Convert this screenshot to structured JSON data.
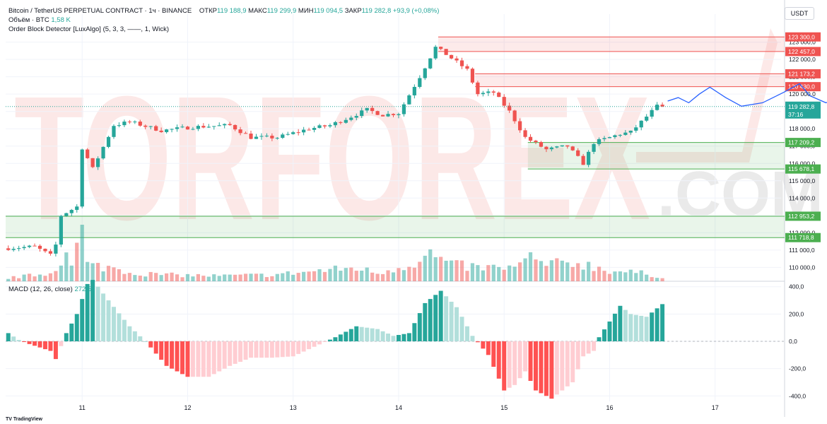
{
  "header": {
    "symbol_title": "Bitcoin / TetherUS PERPETUAL CONTRACT · 1ч · BINANCE",
    "ohlc": [
      {
        "label": "ОТКР",
        "value": "119 188,9"
      },
      {
        "label": "МАКС",
        "value": "119 299,9"
      },
      {
        "label": "МИН",
        "value": "119 094,5"
      },
      {
        "label": "ЗАКР",
        "value": "119 282,8"
      }
    ],
    "change": "+93,9 (+0,08%)",
    "volume_label": "Объём · BTC",
    "volume_value": "1,58 K",
    "indicator_label": "Order Block Detector [LuxAlgo] (5, 3, 3, ——, 1, Wick)",
    "currency": "USDT"
  },
  "macd_legend": {
    "label": "MACD (12, 26, close)",
    "value": "272,5"
  },
  "watermark": {
    "text": "TORFOREX",
    "suffix": ".COM"
  },
  "footer": {
    "brand": "TV TradingView"
  },
  "colors": {
    "up": "#26a69a",
    "down": "#ef5350",
    "hist_up_strong": "#26a69a",
    "hist_up_weak": "#b2dfdb",
    "hist_down_strong": "#ff5252",
    "hist_down_weak": "#ffcdd2",
    "bear_ob": "#ef5350",
    "bull_ob": "#4caf50",
    "forecast": "#2962ff",
    "watermark": "#ef5350"
  },
  "chart_data": [
    {
      "type": "candlestick",
      "title": "Bitcoin / TetherUS PERPETUAL CONTRACT",
      "price_axis": {
        "ylim": [
          109200,
          123800
        ],
        "ticks": [
          {
            "value": 110000,
            "label": "110 000,0"
          },
          {
            "value": 111000,
            "label": "111 000,0"
          },
          {
            "value": 112000,
            "label": "112 000,0"
          },
          {
            "value": 113000,
            "label": "113 000,0"
          },
          {
            "value": 114000,
            "label": "114 000,0"
          },
          {
            "value": 115000,
            "label": "115 000,0"
          },
          {
            "value": 116000,
            "label": "116 000,0"
          },
          {
            "value": 117000,
            "label": "117 000,0"
          },
          {
            "value": 118000,
            "label": "118 000,0"
          },
          {
            "value": 119000,
            "label": "119 000,0"
          },
          {
            "value": 120000,
            "label": "120 000,0"
          },
          {
            "value": 121000,
            "label": "121 000,0"
          },
          {
            "value": 122000,
            "label": "122 000,0"
          },
          {
            "value": 123000,
            "label": "123 000,0"
          }
        ]
      },
      "time_axis": {
        "ticks": [
          {
            "bar": 14,
            "label": "11"
          },
          {
            "bar": 34,
            "label": "12"
          },
          {
            "bar": 54,
            "label": "13"
          },
          {
            "bar": 74,
            "label": "14"
          },
          {
            "bar": 94,
            "label": "15"
          },
          {
            "bar": 114,
            "label": "16"
          },
          {
            "bar": 134,
            "label": "17"
          }
        ],
        "total_bars": 140
      },
      "key_points": [
        [
          0,
          111100
        ],
        [
          6,
          111200
        ],
        [
          9,
          110700
        ],
        [
          10,
          111300
        ],
        [
          11,
          113000
        ],
        [
          14,
          113500
        ],
        [
          15,
          116900
        ],
        [
          17,
          115700
        ],
        [
          21,
          118200
        ],
        [
          24,
          118400
        ],
        [
          30,
          117900
        ],
        [
          36,
          118100
        ],
        [
          43,
          118200
        ],
        [
          47,
          117500
        ],
        [
          52,
          117500
        ],
        [
          58,
          118000
        ],
        [
          62,
          118200
        ],
        [
          66,
          118700
        ],
        [
          69,
          119100
        ],
        [
          72,
          118800
        ],
        [
          75,
          118900
        ],
        [
          79,
          121000
        ],
        [
          82,
          122700
        ],
        [
          84,
          122300
        ],
        [
          88,
          121400
        ],
        [
          90,
          120000
        ],
        [
          93,
          120100
        ],
        [
          96,
          119000
        ],
        [
          99,
          117500
        ],
        [
          103,
          116800
        ],
        [
          107,
          117000
        ],
        [
          110,
          116000
        ],
        [
          112,
          117200
        ],
        [
          114,
          117400
        ],
        [
          117,
          117700
        ],
        [
          119,
          117800
        ],
        [
          121,
          118400
        ],
        [
          123,
          119000
        ],
        [
          124,
          119300
        ]
      ],
      "last_price": {
        "value": 119282.8,
        "label": "119 282,8",
        "countdown": "37:16"
      },
      "order_blocks": [
        {
          "kind": "bearish",
          "top": 123300,
          "bottom": 122457,
          "start_bar": 82,
          "top_label": "123 300,0",
          "bottom_label": "122 457,0"
        },
        {
          "kind": "bearish",
          "top": 121173.2,
          "bottom": 120430,
          "start_bar": 89,
          "top_label": "121 173,2",
          "bottom_label": "120 430,0"
        },
        {
          "kind": "bullish",
          "top": 117209.2,
          "bottom": 115678.1,
          "start_bar": 99,
          "top_label": "117 209,2",
          "bottom_label": "115 678,1"
        },
        {
          "kind": "bullish",
          "top": 112953.2,
          "bottom": 111718.8,
          "start_bar": 0,
          "top_label": "112 953,2",
          "bottom_label": "111 718,8"
        }
      ],
      "forecast_path": [
        [
          125,
          119600
        ],
        [
          127,
          119800
        ],
        [
          129,
          119500
        ],
        [
          131,
          120000
        ],
        [
          133,
          120400
        ],
        [
          136,
          119800
        ],
        [
          139,
          119300
        ],
        [
          143,
          119500
        ],
        [
          147,
          120100
        ],
        [
          150,
          120600
        ],
        [
          152,
          119900
        ],
        [
          155,
          119500
        ],
        [
          158,
          119800
        ],
        [
          161,
          119900
        ]
      ]
    },
    {
      "type": "bar",
      "title": "Объём · BTC",
      "profile_points": [
        [
          0,
          0.06
        ],
        [
          8,
          0.15
        ],
        [
          11,
          0.55
        ],
        [
          12,
          0.25
        ],
        [
          14,
          1.0
        ],
        [
          15,
          0.3
        ],
        [
          20,
          0.25
        ],
        [
          24,
          0.15
        ],
        [
          30,
          0.12
        ],
        [
          40,
          0.1
        ],
        [
          50,
          0.12
        ],
        [
          62,
          0.22
        ],
        [
          66,
          0.25
        ],
        [
          70,
          0.15
        ],
        [
          78,
          0.38
        ],
        [
          80,
          0.5
        ],
        [
          84,
          0.3
        ],
        [
          90,
          0.25
        ],
        [
          96,
          0.25
        ],
        [
          99,
          0.43
        ],
        [
          102,
          0.3
        ],
        [
          108,
          0.35
        ],
        [
          110,
          0.3
        ],
        [
          114,
          0.2
        ],
        [
          120,
          0.15
        ],
        [
          124,
          0.08
        ]
      ]
    },
    {
      "type": "histogram",
      "title": "MACD (12, 26, close)",
      "ylim": [
        -440,
        440
      ],
      "ticks": [
        {
          "value": 400,
          "label": "400,0"
        },
        {
          "value": 200,
          "label": "200,0"
        },
        {
          "value": 0,
          "label": "0,0"
        },
        {
          "value": -200,
          "label": "-200,0"
        },
        {
          "value": -400,
          "label": "-400,0"
        }
      ],
      "key_points": [
        [
          0,
          60
        ],
        [
          2,
          10
        ],
        [
          4,
          -20
        ],
        [
          8,
          -70
        ],
        [
          9,
          -130
        ],
        [
          11,
          60
        ],
        [
          13,
          200
        ],
        [
          15,
          420
        ],
        [
          16,
          450
        ],
        [
          19,
          300
        ],
        [
          23,
          110
        ],
        [
          26,
          0
        ],
        [
          30,
          -180
        ],
        [
          34,
          -260
        ],
        [
          38,
          -260
        ],
        [
          42,
          -180
        ],
        [
          46,
          -120
        ],
        [
          50,
          -120
        ],
        [
          54,
          -110
        ],
        [
          58,
          -40
        ],
        [
          62,
          30
        ],
        [
          66,
          110
        ],
        [
          70,
          90
        ],
        [
          73,
          40
        ],
        [
          76,
          60
        ],
        [
          79,
          280
        ],
        [
          82,
          370
        ],
        [
          85,
          250
        ],
        [
          88,
          40
        ],
        [
          91,
          -100
        ],
        [
          94,
          -360
        ],
        [
          96,
          -320
        ],
        [
          98,
          -220
        ],
        [
          100,
          -360
        ],
        [
          103,
          -420
        ],
        [
          107,
          -300
        ],
        [
          109,
          -110
        ],
        [
          111,
          -70
        ],
        [
          112,
          30
        ],
        [
          116,
          260
        ],
        [
          118,
          200
        ],
        [
          121,
          180
        ],
        [
          124,
          272.5
        ]
      ],
      "last_value": 272.5
    }
  ]
}
